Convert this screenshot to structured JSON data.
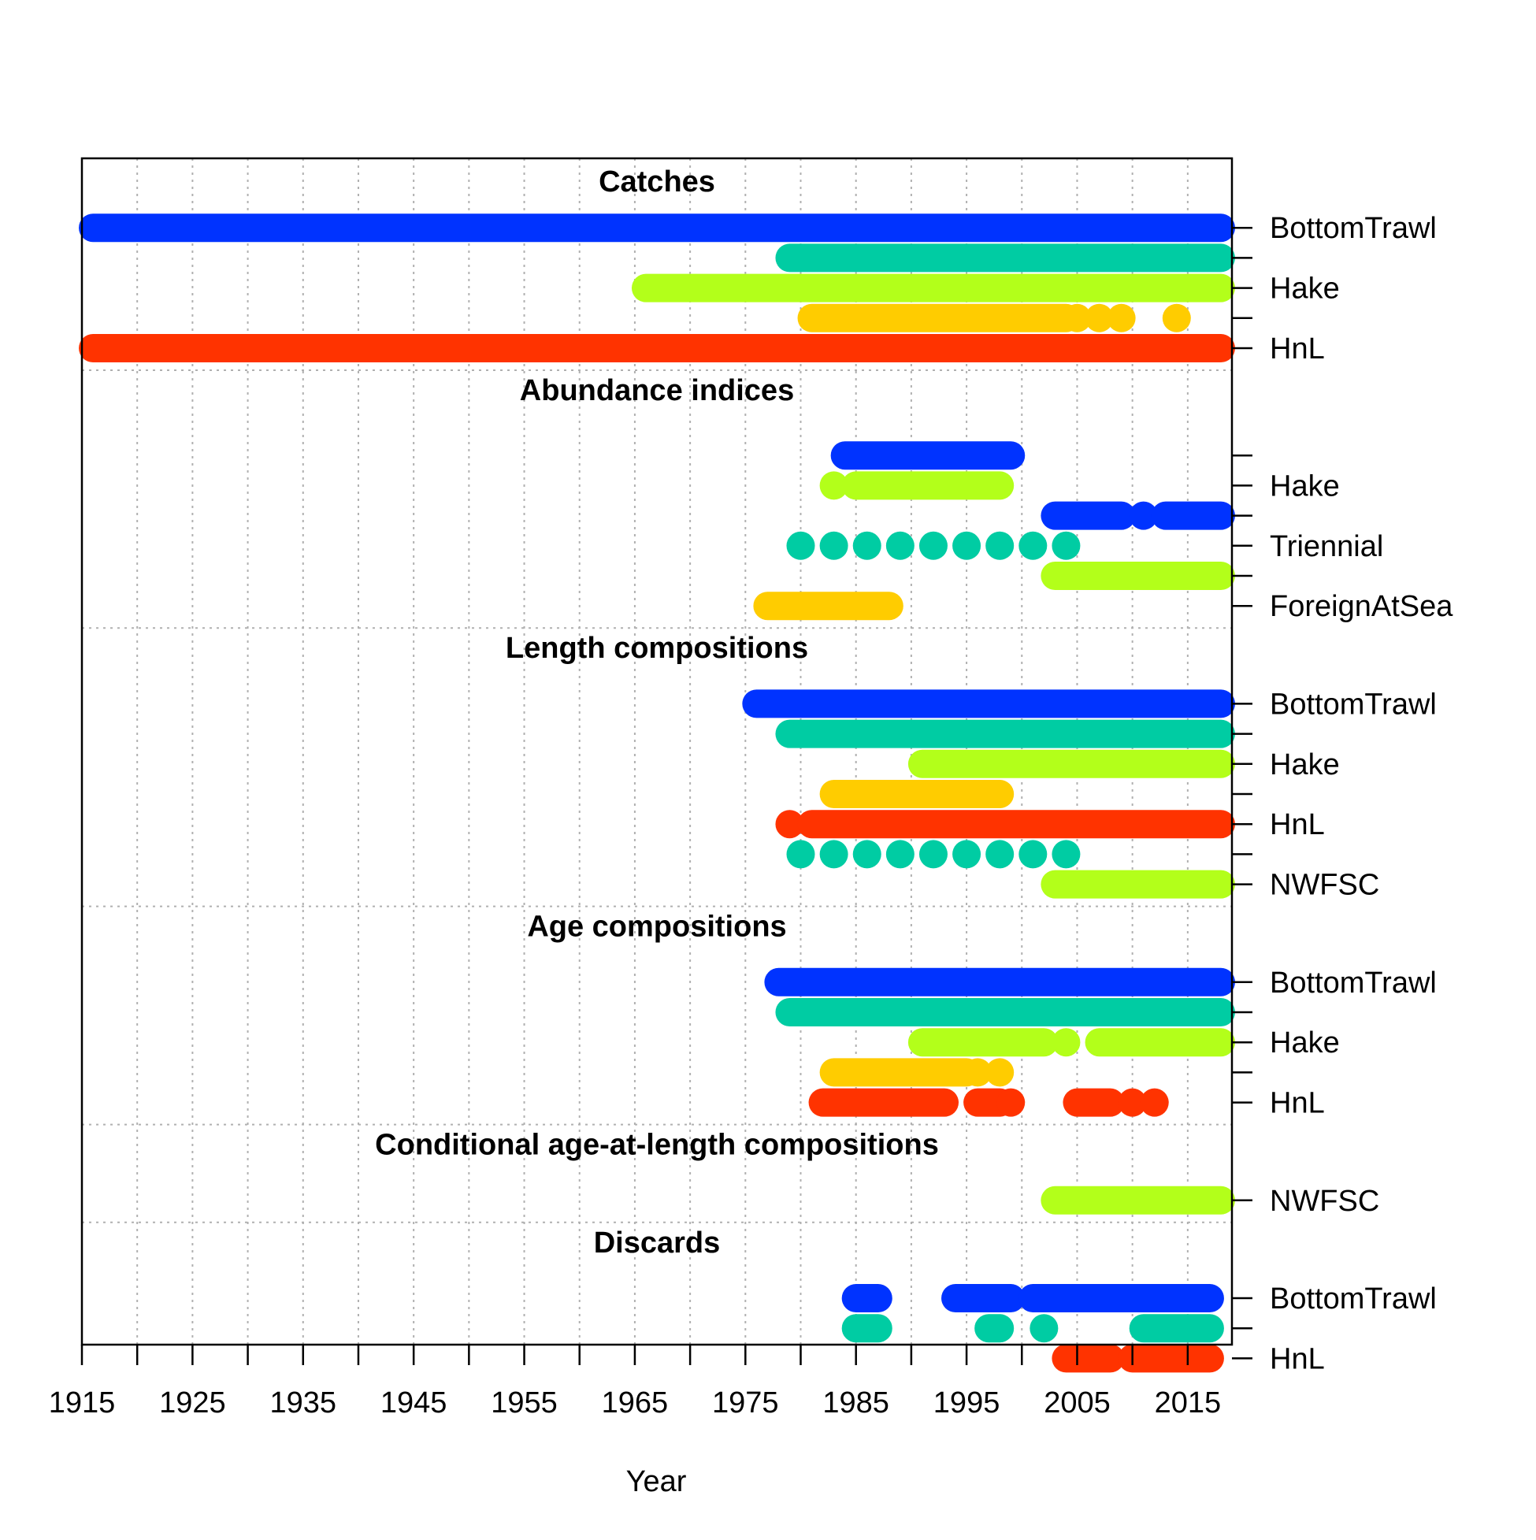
{
  "chart_data": {
    "type": "timeline",
    "xlabel": "Year",
    "xlim": [
      1915,
      2019
    ],
    "xticks": [
      "1915",
      "1925",
      "1935",
      "1945",
      "1955",
      "1965",
      "1975",
      "1985",
      "1995",
      "2005",
      "2015"
    ],
    "grid": true,
    "colors": {
      "blue": "#0033ff",
      "teal": "#00cca3",
      "lime": "#b3ff1a",
      "yellow": "#ffcc00",
      "red": "#ff3300"
    },
    "sections": [
      {
        "title": "Catches",
        "rows": [
          {
            "label": "BottomTrawl",
            "color": "#0033ff",
            "segments": [
              [
                1916,
                2018
              ]
            ]
          },
          {
            "label": "",
            "color": "#00cca3",
            "segments": [
              [
                1979,
                2018
              ]
            ]
          },
          {
            "label": "Hake",
            "color": "#b3ff1a",
            "segments": [
              [
                1966,
                2018
              ]
            ]
          },
          {
            "label": "",
            "color": "#ffcc00",
            "segments": [
              [
                1981,
                2004
              ],
              [
                2005,
                2005
              ],
              [
                2007,
                2007
              ],
              [
                2009,
                2009
              ],
              [
                2014,
                2014
              ]
            ]
          },
          {
            "label": "HnL",
            "color": "#ff3300",
            "segments": [
              [
                1916,
                2018
              ]
            ]
          }
        ]
      },
      {
        "title": "Abundance indices",
        "rows": [
          {
            "label": "",
            "color": "#0033ff",
            "segments": [
              [
                1984,
                1999
              ]
            ]
          },
          {
            "label": "Hake",
            "color": "#b3ff1a",
            "segments": [
              [
                1983,
                1983
              ],
              [
                1985,
                1998
              ]
            ]
          },
          {
            "label": "",
            "color": "#0033ff",
            "segments": [
              [
                2003,
                2009
              ],
              [
                2011,
                2011
              ],
              [
                2013,
                2018
              ]
            ]
          },
          {
            "label": "Triennial",
            "color": "#00cca3",
            "segments": [
              [
                1980,
                1980
              ],
              [
                1983,
                1983
              ],
              [
                1986,
                1986
              ],
              [
                1989,
                1989
              ],
              [
                1992,
                1992
              ],
              [
                1995,
                1995
              ],
              [
                1998,
                1998
              ],
              [
                2001,
                2001
              ],
              [
                2004,
                2004
              ]
            ]
          },
          {
            "label": "",
            "color": "#b3ff1a",
            "segments": [
              [
                2003,
                2018
              ]
            ]
          },
          {
            "label": "ForeignAtSea",
            "color": "#ffcc00",
            "segments": [
              [
                1977,
                1988
              ]
            ]
          }
        ]
      },
      {
        "title": "Length compositions",
        "rows": [
          {
            "label": "BottomTrawl",
            "color": "#0033ff",
            "segments": [
              [
                1976,
                2018
              ]
            ]
          },
          {
            "label": "",
            "color": "#00cca3",
            "segments": [
              [
                1979,
                2018
              ]
            ]
          },
          {
            "label": "Hake",
            "color": "#b3ff1a",
            "segments": [
              [
                1991,
                2018
              ]
            ]
          },
          {
            "label": "",
            "color": "#ffcc00",
            "segments": [
              [
                1983,
                1998
              ]
            ]
          },
          {
            "label": "HnL",
            "color": "#ff3300",
            "segments": [
              [
                1979,
                1979
              ],
              [
                1981,
                2018
              ]
            ]
          },
          {
            "label": "",
            "color": "#00cca3",
            "segments": [
              [
                1980,
                1980
              ],
              [
                1983,
                1983
              ],
              [
                1986,
                1986
              ],
              [
                1989,
                1989
              ],
              [
                1992,
                1992
              ],
              [
                1995,
                1995
              ],
              [
                1998,
                1998
              ],
              [
                2001,
                2001
              ],
              [
                2004,
                2004
              ]
            ]
          },
          {
            "label": "NWFSC",
            "color": "#b3ff1a",
            "segments": [
              [
                2003,
                2018
              ]
            ]
          }
        ]
      },
      {
        "title": "Age compositions",
        "rows": [
          {
            "label": "BottomTrawl",
            "color": "#0033ff",
            "segments": [
              [
                1978,
                2018
              ]
            ]
          },
          {
            "label": "",
            "color": "#00cca3",
            "segments": [
              [
                1979,
                2018
              ]
            ]
          },
          {
            "label": "Hake",
            "color": "#b3ff1a",
            "segments": [
              [
                1991,
                2002
              ],
              [
                2004,
                2004
              ],
              [
                2007,
                2018
              ]
            ]
          },
          {
            "label": "",
            "color": "#ffcc00",
            "segments": [
              [
                1983,
                1995
              ],
              [
                1996,
                1996
              ],
              [
                1998,
                1998
              ]
            ]
          },
          {
            "label": "HnL",
            "color": "#ff3300",
            "segments": [
              [
                1982,
                1993
              ],
              [
                1996,
                1998
              ],
              [
                1999,
                1999
              ],
              [
                2005,
                2008
              ],
              [
                2010,
                2010
              ],
              [
                2012,
                2012
              ]
            ]
          }
        ]
      },
      {
        "title": "Conditional age-at-length compositions",
        "rows": [
          {
            "label": "NWFSC",
            "color": "#b3ff1a",
            "segments": [
              [
                2003,
                2018
              ]
            ]
          }
        ]
      },
      {
        "title": "Discards",
        "rows": [
          {
            "label": "BottomTrawl",
            "color": "#0033ff",
            "segments": [
              [
                1985,
                1987
              ],
              [
                1994,
                1999
              ],
              [
                2001,
                2017
              ]
            ]
          },
          {
            "label": "",
            "color": "#00cca3",
            "segments": [
              [
                1985,
                1987
              ],
              [
                1997,
                1998
              ],
              [
                2002,
                2002
              ],
              [
                2011,
                2017
              ]
            ]
          },
          {
            "label": "HnL",
            "color": "#ff3300",
            "segments": [
              [
                2004,
                2008
              ],
              [
                2010,
                2017
              ]
            ]
          }
        ]
      }
    ]
  }
}
